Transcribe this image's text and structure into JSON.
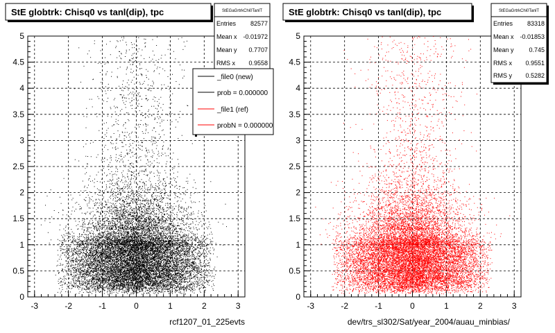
{
  "footer_text": "",
  "chart_data": [
    {
      "type": "scatter",
      "title": "StE globtrk: Chisq0 vs tanl(dip), tpc",
      "xlabel": "rcf1207_01_225evts",
      "ylabel": "",
      "xlim": [
        -3.2,
        3.2
      ],
      "ylim": [
        0,
        5
      ],
      "x_ticks": [
        -3,
        -2,
        -1,
        0,
        1,
        2,
        3
      ],
      "y_ticks": [
        0,
        0.5,
        1,
        1.5,
        2,
        2.5,
        3,
        3.5,
        4,
        4.5,
        5
      ],
      "grid": true,
      "marker_color": "#000000",
      "stats": {
        "name": "StEGaGrtrkChi0TanlT",
        "entries_label": "Entries",
        "entries": "82577",
        "meanx_label": "Mean x",
        "meanx": "-0.01972",
        "meany_label": "Mean y",
        "meany": "0.7707",
        "rmsx_label": "RMS x",
        "rmsx": "0.9558"
      },
      "legend": {
        "position": "top-right",
        "entries": [
          {
            "label": "_file0 (new)",
            "color": "#000000"
          },
          {
            "label": "prob = 0.000000",
            "color": "#000000"
          },
          {
            "label": "_file1 (ref)",
            "color": "#ff0000"
          },
          {
            "label": "probN = 0.000000",
            "color": "#ff0000"
          }
        ]
      },
      "distribution": {
        "x_mean": -0.02,
        "x_rms": 0.96,
        "y_mean": 0.77,
        "y_rms": 0.53,
        "core_x_range": [
          -2.3,
          2.3
        ],
        "core_y_range": [
          0.05,
          1.7
        ],
        "upper_tail_to": 5
      }
    },
    {
      "type": "scatter",
      "title": "StE globtrk: Chisq0 vs tanl(dip), tpc",
      "xlabel": "dev/trs_sl302/Sat/year_2004/auau_minbias/",
      "ylabel": "",
      "xlim": [
        -3.2,
        3.2
      ],
      "ylim": [
        0,
        5
      ],
      "x_ticks": [
        -3,
        -2,
        -1,
        0,
        1,
        2,
        3
      ],
      "y_ticks": [
        0,
        0.5,
        1,
        1.5,
        2,
        2.5,
        3,
        3.5,
        4,
        4.5,
        5
      ],
      "grid": true,
      "marker_color": "#ff0000",
      "stats": {
        "name": "StEGaGrtrkChi0TanlT",
        "entries_label": "Entries",
        "entries": "83318",
        "meanx_label": "Mean x",
        "meanx": "-0.01853",
        "meany_label": "Mean y",
        "meany": "0.745",
        "rmsx_label": "RMS x",
        "rmsx": "0.9551",
        "rmsy_label": "RMS y",
        "rmsy": "0.5282"
      },
      "distribution": {
        "x_mean": -0.02,
        "x_rms": 0.96,
        "y_mean": 0.75,
        "y_rms": 0.53,
        "core_x_range": [
          -2.3,
          2.3
        ],
        "core_y_range": [
          0.05,
          1.7
        ],
        "upper_tail_to": 5
      }
    }
  ]
}
